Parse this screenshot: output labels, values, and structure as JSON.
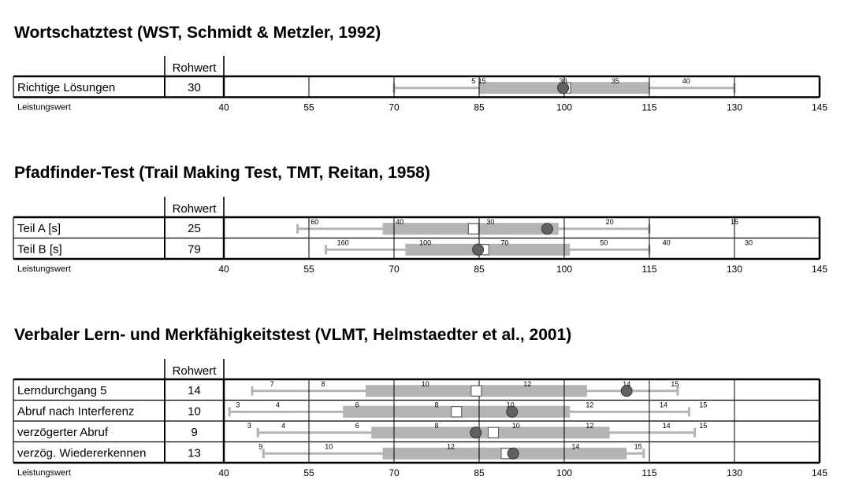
{
  "chart_data": {
    "type": "table",
    "axis": {
      "label": "Leistungswert",
      "ticks": [
        40,
        55,
        70,
        85,
        100,
        115,
        130,
        145
      ],
      "range": [
        40,
        145
      ]
    },
    "colors": {
      "band": "#b4b4b4",
      "whisker": "#b4b4b4",
      "marker": "#616161",
      "grid": "#000000"
    },
    "column_header": "Rohwert",
    "sections": [
      {
        "title": "Wortschatztest (WST, Schmidt & Metzler, 1992)",
        "rows": [
          {
            "label": "Richtige Lösungen",
            "rohwert": "30",
            "whisker": [
              70,
              130
            ],
            "band": [
              85,
              115
            ],
            "circle": 99.8,
            "square": 100.2,
            "scale_marks": [
              {
                "label": "5",
                "value": 84
              },
              {
                "label": "15",
                "value": 85.5
              },
              {
                "label": "30",
                "value": 99.8
              },
              {
                "label": "35",
                "value": 109
              },
              {
                "label": "40",
                "value": 121.5
              }
            ]
          }
        ]
      },
      {
        "title": "Pfadfinder-Test (Trail Making Test, TMT, Reitan, 1958)",
        "rows": [
          {
            "label": "Teil A [s]",
            "rohwert": "25",
            "whisker": [
              53,
              115
            ],
            "band": [
              68,
              99
            ],
            "circle": 97,
            "square": 84,
            "scale_marks": [
              {
                "label": "60",
                "value": 56
              },
              {
                "label": "40",
                "value": 71
              },
              {
                "label": "30",
                "value": 87
              },
              {
                "label": "20",
                "value": 108
              },
              {
                "label": "15",
                "value": 130
              }
            ]
          },
          {
            "label": "Teil B [s]",
            "rohwert": "79",
            "whisker": [
              58,
              115
            ],
            "band": [
              72,
              101
            ],
            "circle": 84.8,
            "square": 85.8,
            "scale_marks": [
              {
                "label": "160",
                "value": 61
              },
              {
                "label": "100",
                "value": 75.5
              },
              {
                "label": "70",
                "value": 89.5
              },
              {
                "label": "50",
                "value": 107
              },
              {
                "label": "40",
                "value": 118
              },
              {
                "label": "30",
                "value": 132.5
              }
            ]
          }
        ]
      },
      {
        "title": "Verbaler Lern- und Merkfähigkeitstest (VLMT, Helmstaedter et al., 2001)",
        "rows": [
          {
            "label": "Lerndurchgang 5",
            "rohwert": "14",
            "whisker": [
              45,
              120
            ],
            "band": [
              65,
              104
            ],
            "circle": 111,
            "square": 84.5,
            "scale_marks": [
              {
                "label": "7",
                "value": 48.5
              },
              {
                "label": "8",
                "value": 57.5
              },
              {
                "label": "10",
                "value": 75.5
              },
              {
                "label": "12",
                "value": 93.5
              },
              {
                "label": "14",
                "value": 111
              },
              {
                "label": "15",
                "value": 119.5
              }
            ]
          },
          {
            "label": "Abruf nach Interferenz",
            "rohwert": "10",
            "whisker": [
              41,
              122
            ],
            "band": [
              61,
              101
            ],
            "circle": 90.8,
            "square": 81,
            "scale_marks": [
              {
                "label": "3",
                "value": 42.5
              },
              {
                "label": "4",
                "value": 49.5
              },
              {
                "label": "6",
                "value": 63.5
              },
              {
                "label": "8",
                "value": 77.5
              },
              {
                "label": "10",
                "value": 90.5
              },
              {
                "label": "12",
                "value": 104.5
              },
              {
                "label": "14",
                "value": 117.5
              },
              {
                "label": "15",
                "value": 124.5
              }
            ]
          },
          {
            "label": "verzögerter Abruf",
            "rohwert": "9",
            "whisker": [
              46,
              123
            ],
            "band": [
              66,
              108
            ],
            "circle": 84.4,
            "square": 87.5,
            "scale_marks": [
              {
                "label": "3",
                "value": 44.5
              },
              {
                "label": "4",
                "value": 50.5
              },
              {
                "label": "6",
                "value": 63.5
              },
              {
                "label": "8",
                "value": 77.5
              },
              {
                "label": "10",
                "value": 91.5
              },
              {
                "label": "12",
                "value": 104.5
              },
              {
                "label": "14",
                "value": 118
              },
              {
                "label": "15",
                "value": 124.5
              }
            ]
          },
          {
            "label": "verzög. Wiedererkennen",
            "rohwert": "13",
            "whisker": [
              47,
              114
            ],
            "band": [
              68,
              111
            ],
            "circle": 91,
            "square": 89.8,
            "scale_marks": [
              {
                "label": "9",
                "value": 46.5
              },
              {
                "label": "10",
                "value": 58.5
              },
              {
                "label": "12",
                "value": 80
              },
              {
                "label": "14",
                "value": 102
              },
              {
                "label": "15",
                "value": 113
              }
            ]
          }
        ]
      }
    ]
  }
}
